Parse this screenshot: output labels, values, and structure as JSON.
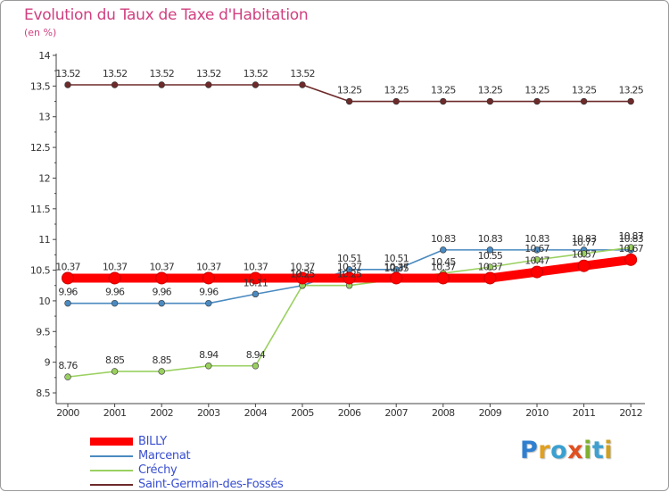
{
  "title": "Evolution du Taux de Taxe d'Habitation",
  "subtitle": "(en %)",
  "logo": {
    "letters": [
      "P",
      "r",
      "o",
      "x",
      "i",
      "t",
      "i"
    ],
    "colors": [
      "#2f7fd0",
      "#e0a020",
      "#3aa0d0",
      "#e05020",
      "#80b030",
      "#40a0d0",
      "#d0a020"
    ]
  },
  "chart_data": {
    "type": "line",
    "title": "Evolution du Taux de Taxe d'Habitation",
    "ylabel": "(en %)",
    "xlabel": "",
    "x": [
      "2000",
      "2001",
      "2002",
      "2003",
      "2004",
      "2005",
      "2006",
      "2007",
      "2008",
      "2009",
      "2010",
      "2011",
      "2012"
    ],
    "ylim": [
      8.5,
      14
    ],
    "yticks": [
      "8.5",
      "9",
      "9.5",
      "10",
      "10.5",
      "11",
      "11.5",
      "12",
      "12.5",
      "13",
      "13.5",
      "14"
    ],
    "grid": false,
    "legend": "bottom-left",
    "series": [
      {
        "name": "Saint-Germain-des-Fossés",
        "color": "#6e2a2a",
        "values": [
          13.52,
          13.52,
          13.52,
          13.52,
          13.52,
          13.52,
          13.25,
          13.25,
          13.25,
          13.25,
          13.25,
          13.25,
          13.25
        ],
        "labels": [
          "13.52",
          "13.52",
          "13.52",
          "13.52",
          "13.52",
          "13.52",
          "13.25",
          "13.25",
          "13.25",
          "13.25",
          "13.25",
          "13.25",
          "13.25"
        ]
      },
      {
        "name": "Marcenat",
        "color": "#4a8ac0",
        "values": [
          9.96,
          9.96,
          9.96,
          9.96,
          10.11,
          10.25,
          10.51,
          10.51,
          10.83,
          10.83,
          10.83,
          10.83,
          10.83
        ],
        "labels": [
          "9.96",
          "9.96",
          "9.96",
          "9.96",
          "10.11",
          "10.25",
          "10.51",
          "10.51",
          "10.83",
          "10.83",
          "10.83",
          "10.83",
          "10.83"
        ]
      },
      {
        "name": "Créchy",
        "color": "#9ad060",
        "values": [
          8.76,
          8.85,
          8.85,
          8.94,
          8.94,
          10.25,
          10.25,
          10.35,
          10.45,
          10.55,
          10.67,
          10.77,
          10.87
        ],
        "labels": [
          "8.76",
          "8.85",
          "8.85",
          "8.94",
          "8.94",
          "10.25",
          "10.25",
          "10.35",
          "10.45",
          "10.55",
          "10.67",
          "10.77",
          "10.87"
        ]
      },
      {
        "name": "BILLY",
        "color": "#ff0000",
        "values": [
          10.37,
          10.37,
          10.37,
          10.37,
          10.37,
          10.37,
          10.37,
          10.37,
          10.37,
          10.37,
          10.47,
          10.57,
          10.67
        ],
        "labels": [
          "10.37",
          "10.37",
          "10.37",
          "10.37",
          "10.37",
          "10.37",
          "10.37",
          "10.37",
          "10.37",
          "10.37",
          "10.47",
          "10.57",
          "10.67"
        ]
      }
    ],
    "legend_order": [
      "BILLY",
      "Marcenat",
      "Créchy",
      "Saint-Germain-des-Fossés"
    ]
  }
}
